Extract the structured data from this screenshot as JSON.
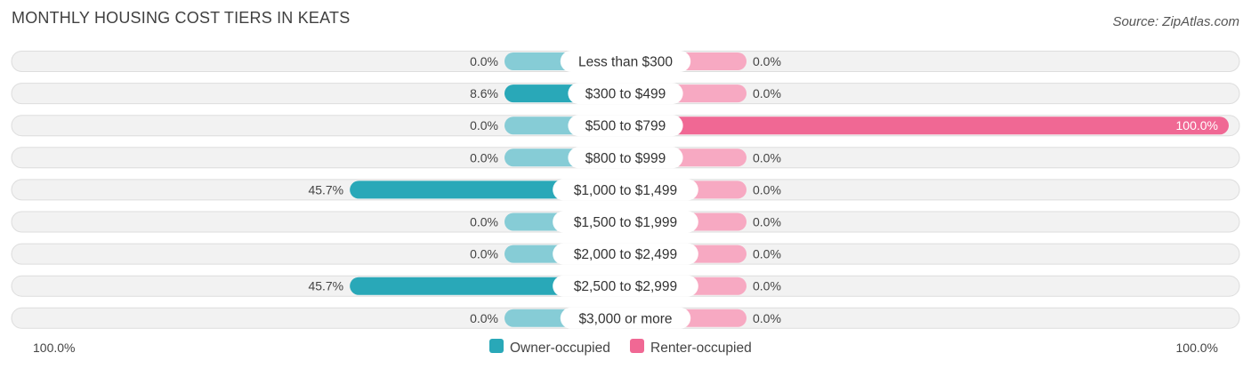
{
  "title": "MONTHLY HOUSING COST TIERS IN KEATS",
  "source": "Source: ZipAtlas.com",
  "colors": {
    "owner_strong": "#29a8b8",
    "owner_light": "#86ccd6",
    "renter_strong": "#f06894",
    "renter_light": "#f7a9c2",
    "row_bg": "#f2f2f2",
    "row_border": "#dddddd"
  },
  "chart_data": {
    "type": "bar",
    "orientation": "horizontal-diverging",
    "categories": [
      "Less than $300",
      "$300 to $499",
      "$500 to $799",
      "$800 to $999",
      "$1,000 to $1,499",
      "$1,500 to $1,999",
      "$2,000 to $2,499",
      "$2,500 to $2,999",
      "$3,000 or more"
    ],
    "series": [
      {
        "name": "Owner-occupied",
        "values": [
          0.0,
          8.6,
          0.0,
          0.0,
          45.7,
          0.0,
          0.0,
          45.7,
          0.0
        ],
        "labels": [
          "0.0%",
          "8.6%",
          "0.0%",
          "0.0%",
          "45.7%",
          "0.0%",
          "0.0%",
          "45.7%",
          "0.0%"
        ]
      },
      {
        "name": "Renter-occupied",
        "values": [
          0.0,
          0.0,
          100.0,
          0.0,
          0.0,
          0.0,
          0.0,
          0.0,
          0.0
        ],
        "labels": [
          "0.0%",
          "0.0%",
          "100.0%",
          "0.0%",
          "0.0%",
          "0.0%",
          "0.0%",
          "0.0%",
          "0.0%"
        ]
      }
    ],
    "xlim": [
      -100,
      100
    ],
    "axis_left_label": "100.0%",
    "axis_right_label": "100.0%",
    "legend_position": "bottom-center"
  }
}
